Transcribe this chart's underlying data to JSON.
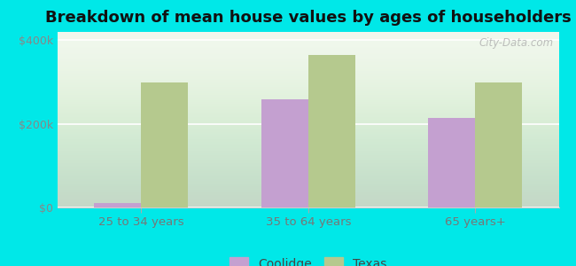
{
  "title": "Breakdown of mean house values by ages of householders",
  "categories": [
    "25 to 34 years",
    "35 to 64 years",
    "65 years+"
  ],
  "coolidge_values": [
    10000,
    258000,
    215000
  ],
  "texas_values": [
    300000,
    365000,
    300000
  ],
  "coolidge_color": "#c4a0d0",
  "texas_color": "#b5c98e",
  "background_color": "#00e8e8",
  "ylim": [
    0,
    420000
  ],
  "yticks": [
    0,
    200000,
    400000
  ],
  "ytick_labels": [
    "$0",
    "$200k",
    "$400k"
  ],
  "title_fontsize": 13,
  "legend_labels": [
    "Coolidge",
    "Texas"
  ],
  "bar_width": 0.28,
  "watermark": "City-Data.com"
}
